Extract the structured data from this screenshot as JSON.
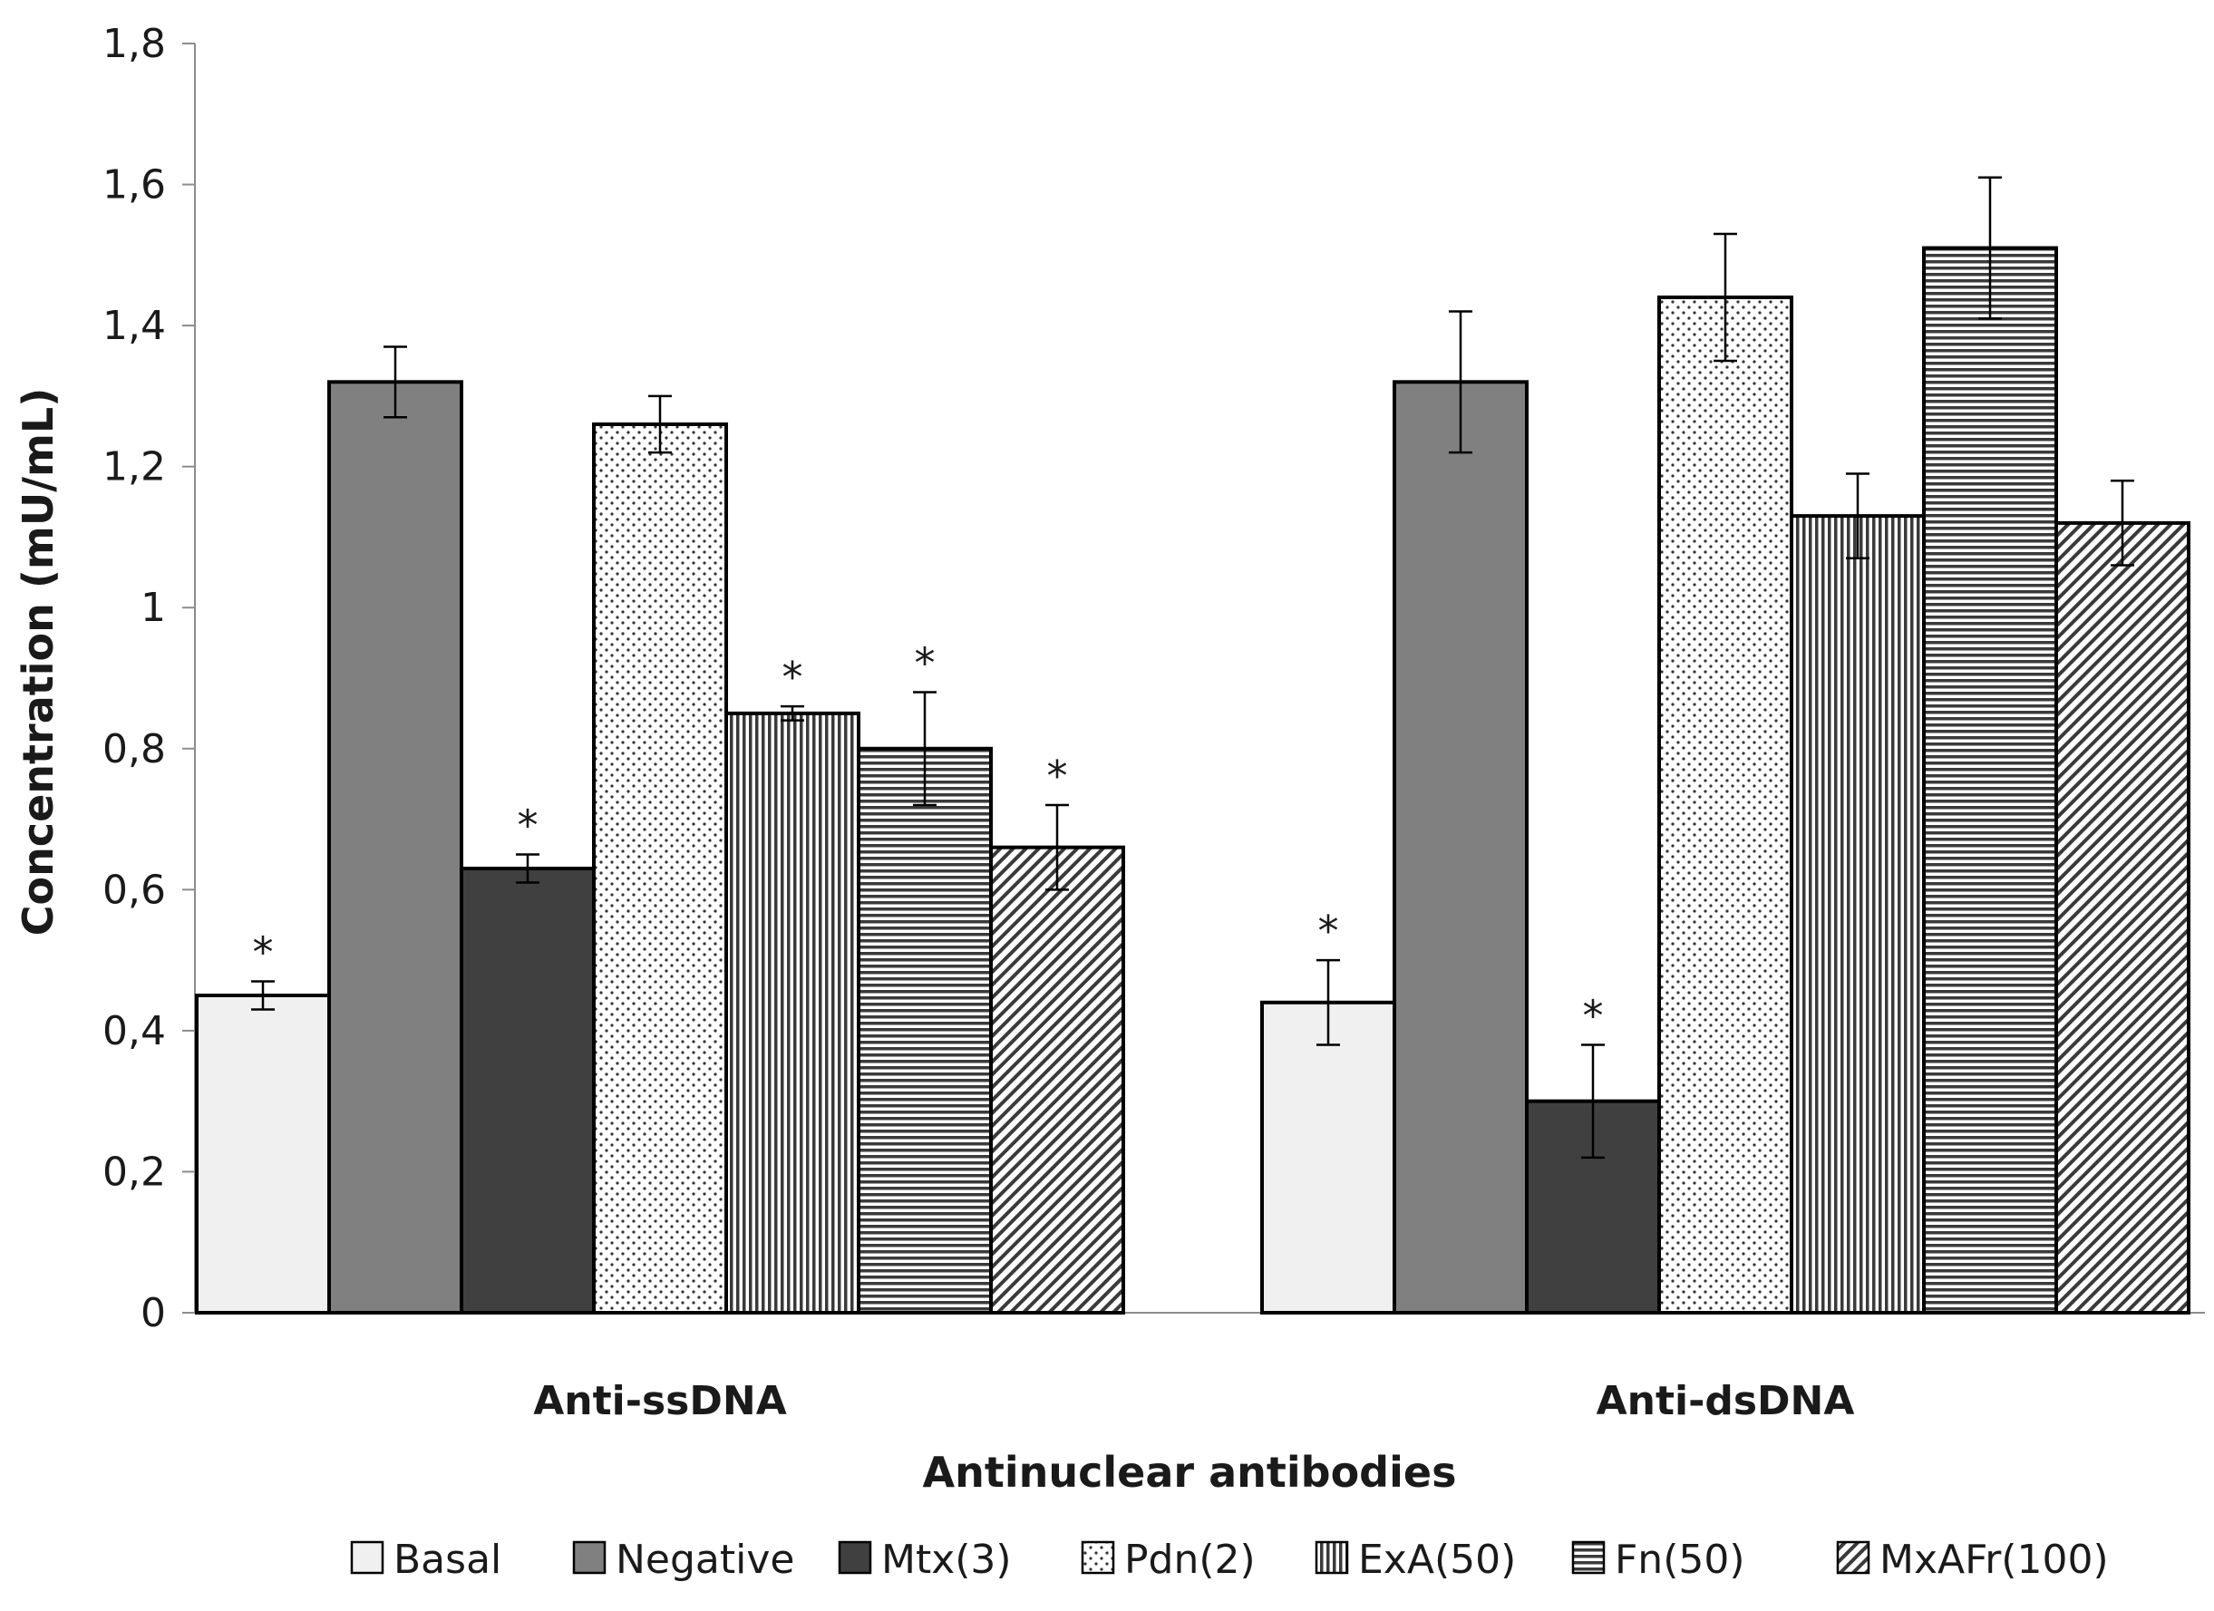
{
  "chart_data": {
    "type": "bar",
    "title": "",
    "xlabel": "Antinuclear antibodies",
    "ylabel": "Concentration (mU/mL)",
    "ylim": [
      0,
      1.8
    ],
    "y_ticks": [
      "0",
      "0,2",
      "0,4",
      "0,6",
      "0,8",
      "1",
      "1,2",
      "1,4",
      "1,6",
      "1,8"
    ],
    "y_tick_values": [
      0,
      0.2,
      0.4,
      0.6,
      0.8,
      1.0,
      1.2,
      1.4,
      1.6,
      1.8
    ],
    "categories": [
      "Anti-ssDNA",
      "Anti-dsDNA"
    ],
    "legend_position": "bottom",
    "significance_marker": "*",
    "series": [
      {
        "name": "Basal",
        "values": [
          0.45,
          0.44
        ],
        "errors": [
          0.02,
          0.06
        ],
        "significant": [
          true,
          true
        ],
        "fill": "#f0f0f0",
        "pattern": "solid"
      },
      {
        "name": "Negative",
        "values": [
          1.32,
          1.32
        ],
        "errors": [
          0.05,
          0.1
        ],
        "significant": [
          false,
          false
        ],
        "fill": "#808080",
        "pattern": "solid"
      },
      {
        "name": "Mtx(3)",
        "values": [
          0.63,
          0.3
        ],
        "errors": [
          0.02,
          0.08
        ],
        "significant": [
          true,
          true
        ],
        "fill": "#404040",
        "pattern": "solid"
      },
      {
        "name": "Pdn(2)",
        "values": [
          1.26,
          1.44
        ],
        "errors": [
          0.04,
          0.09
        ],
        "significant": [
          false,
          false
        ],
        "fill": "#ffffff",
        "pattern": "dots"
      },
      {
        "name": "ExA(50)",
        "values": [
          0.85,
          1.13
        ],
        "errors": [
          0.01,
          0.06
        ],
        "significant": [
          true,
          false
        ],
        "fill": "#ffffff",
        "pattern": "vertical"
      },
      {
        "name": "Fn(50)",
        "values": [
          0.8,
          1.51
        ],
        "errors": [
          0.08,
          0.1
        ],
        "significant": [
          true,
          false
        ],
        "fill": "#ffffff",
        "pattern": "horizontal"
      },
      {
        "name": "MxAFr(100)",
        "values": [
          0.66,
          1.12
        ],
        "errors": [
          0.06,
          0.06
        ],
        "significant": [
          true,
          false
        ],
        "fill": "#ffffff",
        "pattern": "diagonal"
      }
    ]
  }
}
